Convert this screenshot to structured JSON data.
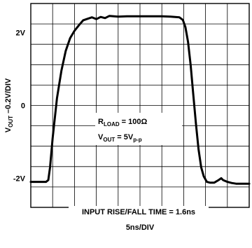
{
  "chart_data": {
    "type": "line",
    "title": "",
    "xlabel": "5ns/DIV",
    "ylabel": "V_OUT –0.2V/DIV",
    "ylabel_parts": {
      "v": "V",
      "sub": "OUT",
      "rest": " –0.2V/DIV"
    },
    "grid": true,
    "x_divisions": 10,
    "y_divisions": 10,
    "xlim": [
      0,
      50
    ],
    "ylim": [
      -2.8,
      2.8
    ],
    "y_ticks": [
      {
        "value": 2,
        "label": "2V"
      },
      {
        "value": 0,
        "label": "0"
      },
      {
        "value": -2,
        "label": "-2V"
      }
    ],
    "series": [
      {
        "x": [
          0,
          3.5,
          4.0,
          4.4,
          5.0,
          6.0,
          7.0,
          8.0,
          9.0,
          10.0,
          11.0,
          12.0,
          13.0,
          14.0,
          15.0,
          16.0,
          17.0,
          18.0,
          19.0,
          20.0,
          22.0,
          25.0,
          28.0,
          30.0,
          32.0,
          34.0,
          34.8,
          35.4,
          36.0,
          36.6,
          37.2,
          37.8,
          38.4,
          39.0,
          39.6,
          40.3,
          41.0,
          42.0,
          43.0,
          43.6,
          44.0,
          45.0,
          46.0,
          47.0,
          48.0,
          50.0
        ],
        "y": [
          -2.1,
          -2.1,
          -2.05,
          -1.7,
          -0.9,
          0.2,
          0.95,
          1.5,
          1.85,
          2.05,
          2.2,
          2.34,
          2.38,
          2.42,
          2.37,
          2.43,
          2.4,
          2.46,
          2.45,
          2.44,
          2.45,
          2.45,
          2.45,
          2.45,
          2.44,
          2.42,
          2.35,
          2.15,
          1.75,
          1.1,
          0.3,
          -0.5,
          -1.2,
          -1.7,
          -1.95,
          -2.1,
          -2.12,
          -2.12,
          -2.05,
          -2.0,
          -2.05,
          -2.1,
          -2.13,
          -2.15,
          -2.15,
          -2.15
        ]
      }
    ],
    "annotations": [
      {
        "text": "R",
        "sub": "LOAD",
        "rest": " = 100Ω"
      },
      {
        "text": "V",
        "sub": "OUT",
        "rest": " = 5V",
        "sub2": "p-p"
      },
      {
        "text": "INPUT RISE/FALL TIME = 1.6ns"
      }
    ]
  }
}
